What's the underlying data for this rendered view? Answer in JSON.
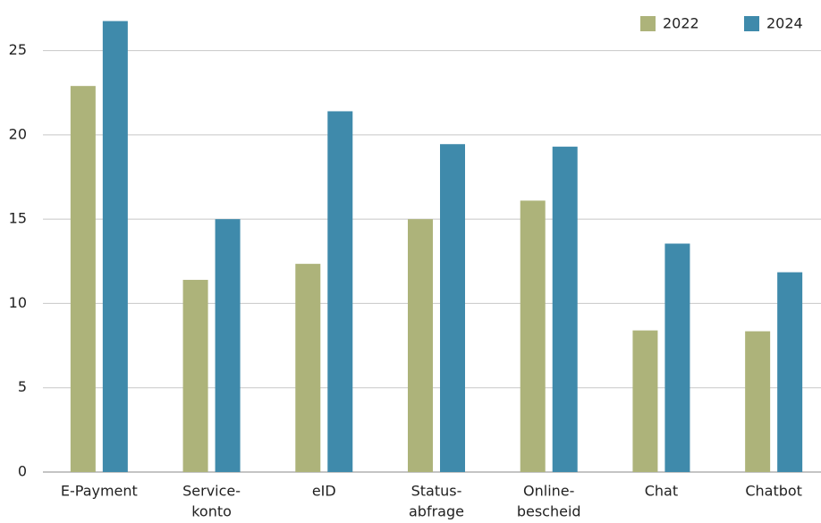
{
  "chart_data": {
    "type": "bar",
    "categories": [
      [
        "E-Payment"
      ],
      [
        "Service-",
        "konto"
      ],
      [
        "eID"
      ],
      [
        "Status-",
        "abfrage"
      ],
      [
        "Online-",
        "bescheid"
      ],
      [
        "Chat"
      ],
      [
        "Chatbot"
      ]
    ],
    "series": [
      {
        "name": "2022",
        "color": "#adb37a",
        "values": [
          22.9,
          11.4,
          12.35,
          15.0,
          16.1,
          8.4,
          8.35
        ]
      },
      {
        "name": "2024",
        "color": "#3f8aab",
        "values": [
          26.75,
          15.0,
          21.4,
          19.45,
          19.3,
          13.55,
          11.85
        ]
      }
    ],
    "ylim": [
      0,
      28
    ],
    "yticks": [
      0,
      5,
      10,
      15,
      20,
      25
    ],
    "grid": true,
    "legend": "top-right"
  }
}
